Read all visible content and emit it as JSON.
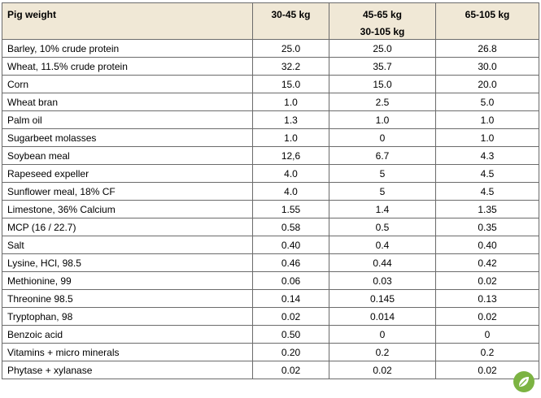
{
  "columns": [
    "Pig weight",
    "30-45 kg",
    "45-65 kg",
    "65-105 kg"
  ],
  "column_sub": "30-105 kg",
  "rows": [
    {
      "label": "Barley, 10% crude protein",
      "v": [
        "25.0",
        "25.0",
        "26.8"
      ]
    },
    {
      "label": "Wheat, 11.5% crude protein",
      "v": [
        "32.2",
        "35.7",
        "30.0"
      ]
    },
    {
      "label": "Corn",
      "v": [
        "15.0",
        "15.0",
        "20.0"
      ]
    },
    {
      "label": "Wheat bran",
      "v": [
        "1.0",
        "2.5",
        "5.0"
      ]
    },
    {
      "label": "Palm oil",
      "v": [
        "1.3",
        "1.0",
        "1.0"
      ]
    },
    {
      "label": "Sugarbeet molasses",
      "v": [
        "1.0",
        "0",
        "1.0"
      ]
    },
    {
      "label": "Soybean meal",
      "v": [
        "12,6",
        "6.7",
        "4.3"
      ]
    },
    {
      "label": "Rapeseed expeller",
      "v": [
        "4.0",
        "5",
        "4.5"
      ]
    },
    {
      "label": "Sunflower meal, 18% CF",
      "v": [
        "4.0",
        "5",
        "4.5"
      ]
    },
    {
      "label": "Limestone, 36% Calcium",
      "v": [
        "1.55",
        "1.4",
        "1.35"
      ]
    },
    {
      "label": "MCP (16 / 22.7)",
      "v": [
        "0.58",
        "0.5",
        "0.35"
      ]
    },
    {
      "label": "Salt",
      "v": [
        "0.40",
        "0.4",
        "0.40"
      ]
    },
    {
      "label": "Lysine, HCl, 98.5",
      "v": [
        "0.46",
        "0.44",
        "0.42"
      ]
    },
    {
      "label": "Methionine, 99",
      "v": [
        "0.06",
        "0.03",
        "0.02"
      ]
    },
    {
      "label": "Threonine 98.5",
      "v": [
        "0.14",
        "0.145",
        "0.13"
      ]
    },
    {
      "label": "Tryptophan, 98",
      "v": [
        "0.02",
        "0.014",
        "0.02"
      ]
    },
    {
      "label": "Benzoic acid",
      "v": [
        "0.50",
        "0",
        "0"
      ]
    },
    {
      "label": "Vitamins + micro minerals",
      "v": [
        "0.20",
        "0.2",
        "0.2"
      ]
    },
    {
      "label": "Phytase + xylanase",
      "v": [
        "0.02",
        "0.02",
        "0.02"
      ]
    }
  ],
  "colors": {
    "header_bg": "#f0e8d6",
    "border": "#6b6b6b",
    "logo": "#7cb342"
  },
  "icons": {
    "logo": "leaf-logo-icon"
  }
}
